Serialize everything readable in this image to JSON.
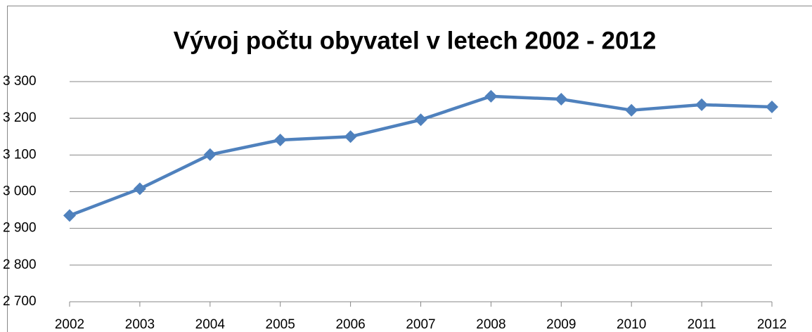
{
  "chart_data": {
    "type": "line",
    "title": "Vývoj počtu obyvatel v letech 2002 - 2012",
    "categories": [
      "2002",
      "2003",
      "2004",
      "2005",
      "2006",
      "2007",
      "2008",
      "2009",
      "2010",
      "2011",
      "2012"
    ],
    "series": [
      {
        "name": null,
        "color": "#4f81bd",
        "values": [
          2935,
          3008,
          3101,
          3141,
          3150,
          3196,
          3260,
          3252,
          3222,
          3237,
          3231
        ]
      }
    ],
    "ylim": [
      2700,
      3300
    ],
    "yticks": [
      {
        "value": 2700,
        "label": "2 700"
      },
      {
        "value": 2800,
        "label": "2 800"
      },
      {
        "value": 2900,
        "label": "2 900"
      },
      {
        "value": 3000,
        "label": "3 000"
      },
      {
        "value": 3100,
        "label": "3 100"
      },
      {
        "value": 3200,
        "label": "3 200"
      },
      {
        "value": 3300,
        "label": "3 300"
      }
    ],
    "grid": true
  }
}
